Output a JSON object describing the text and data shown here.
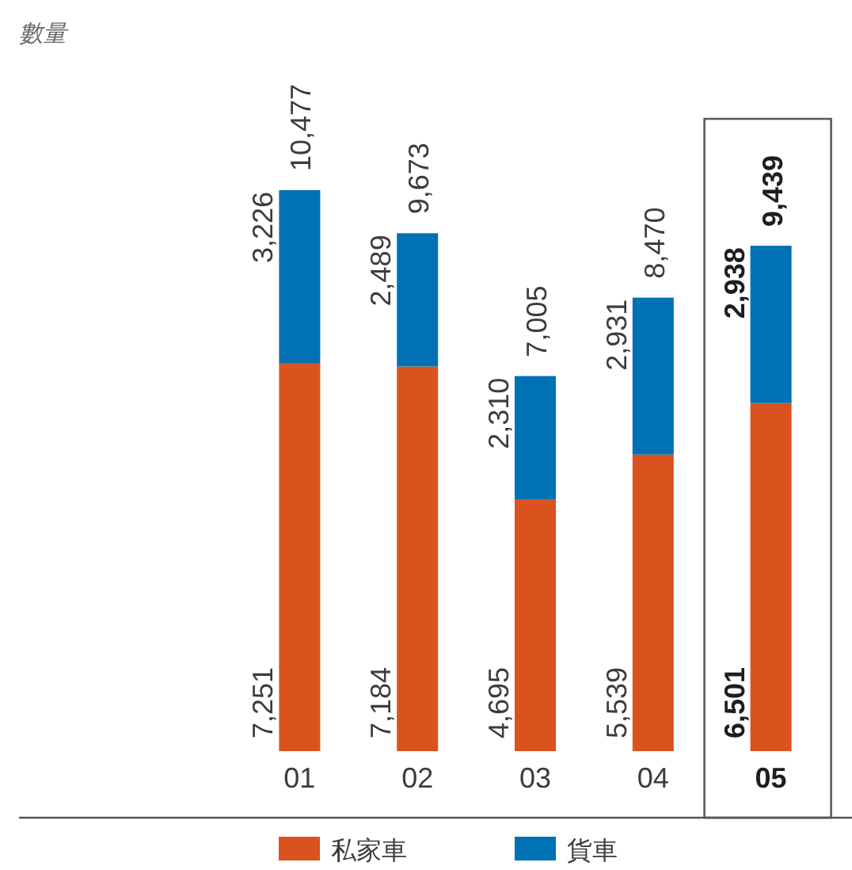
{
  "chart_data": {
    "type": "bar",
    "stacked": true,
    "annotations": [
      "數量"
    ],
    "categories": [
      "01",
      "02",
      "03",
      "04",
      "05"
    ],
    "series": [
      {
        "name": "私家車",
        "color": "#da531f",
        "values": [
          7251,
          7184,
          4695,
          5539,
          6501
        ],
        "value_labels": [
          "7,251",
          "7,184",
          "4,695",
          "5,539",
          "6,501"
        ]
      },
      {
        "name": "貨車",
        "color": "#0071b4",
        "values": [
          3226,
          2489,
          2310,
          2931,
          2938
        ],
        "value_labels": [
          "3,226",
          "2,489",
          "2,310",
          "2,931",
          "2,938"
        ]
      }
    ],
    "totals": [
      "10,477",
      "9,673",
      "7,005",
      "8,470",
      "9,439"
    ],
    "legend": "bottom"
  }
}
